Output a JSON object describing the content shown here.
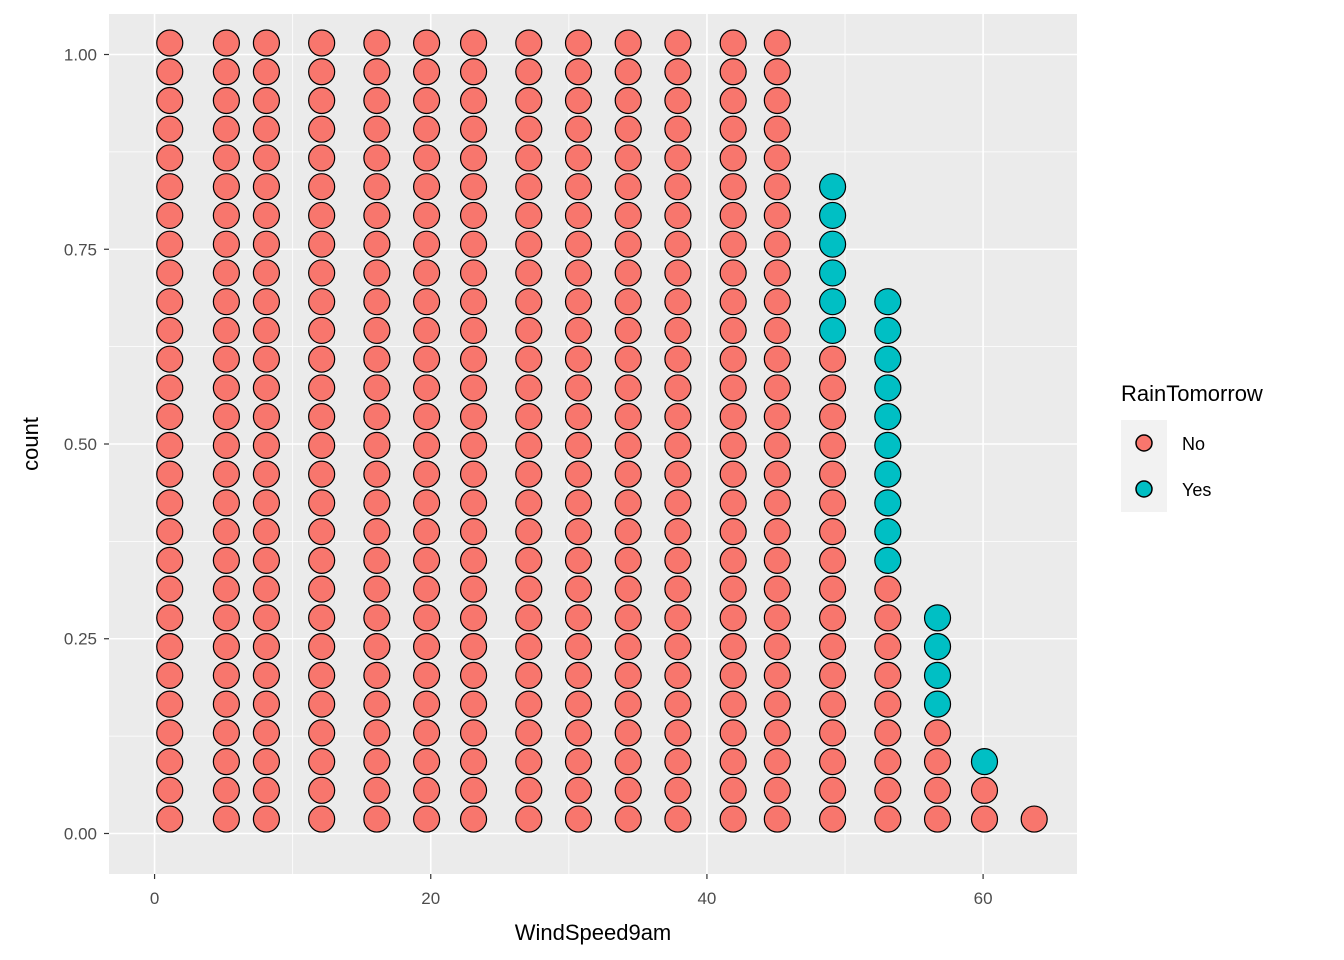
{
  "chart_data": {
    "type": "dotplot",
    "xlabel": "WindSpeed9am",
    "ylabel": "count",
    "xlim": [
      -3.3,
      66.8
    ],
    "ylim": [
      -0.052,
      1.052
    ],
    "x_ticks": [
      0,
      20,
      40,
      60
    ],
    "x_tick_labels": [
      "0",
      "20",
      "40",
      "60"
    ],
    "y_ticks": [
      0,
      0.25,
      0.5,
      0.75,
      1.0
    ],
    "y_tick_labels": [
      "0.00",
      "0.25",
      "0.50",
      "0.75",
      "1.00"
    ],
    "stack_step": 0.0369,
    "stack_base": 0.0185,
    "grid": true,
    "legend": {
      "title": "RainTomorrow",
      "position": "right",
      "entries": [
        {
          "label": "No",
          "color": "#F8766D"
        },
        {
          "label": "Yes",
          "color": "#00BFC4"
        }
      ]
    },
    "colors": {
      "No": "#F8766D",
      "Yes": "#00BFC4",
      "outline": "#000000",
      "panel": "#EBEBEB",
      "grid": "#FFFFFF"
    },
    "columns": [
      {
        "x": 1.1,
        "no": 28,
        "yes": 0
      },
      {
        "x": 5.2,
        "no": 28,
        "yes": 0
      },
      {
        "x": 8.1,
        "no": 28,
        "yes": 0
      },
      {
        "x": 12.1,
        "no": 28,
        "yes": 0
      },
      {
        "x": 16.1,
        "no": 28,
        "yes": 0
      },
      {
        "x": 19.7,
        "no": 28,
        "yes": 0
      },
      {
        "x": 23.1,
        "no": 28,
        "yes": 0
      },
      {
        "x": 27.1,
        "no": 28,
        "yes": 0
      },
      {
        "x": 30.7,
        "no": 28,
        "yes": 0
      },
      {
        "x": 34.3,
        "no": 28,
        "yes": 0
      },
      {
        "x": 37.9,
        "no": 28,
        "yes": 0
      },
      {
        "x": 41.9,
        "no": 28,
        "yes": 0
      },
      {
        "x": 45.1,
        "no": 28,
        "yes": 0
      },
      {
        "x": 49.1,
        "no": 17,
        "yes": 6
      },
      {
        "x": 53.1,
        "no": 9,
        "yes": 10
      },
      {
        "x": 56.7,
        "no": 4,
        "yes": 4
      },
      {
        "x": 60.1,
        "no": 2,
        "yes": 1
      },
      {
        "x": 63.7,
        "no": 1,
        "yes": 0
      }
    ]
  }
}
